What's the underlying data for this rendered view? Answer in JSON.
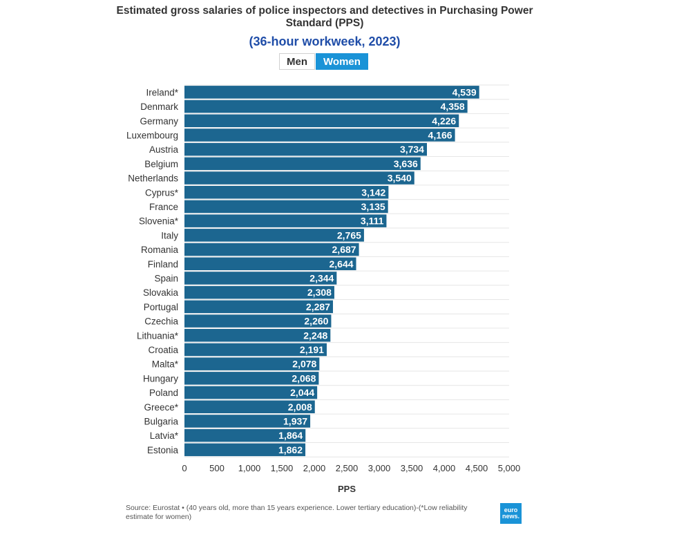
{
  "title": "Estimated gross salaries of police inspectors and detectives in Purchasing Power Standard (PPS)",
  "subtitle": "(36-hour workweek, 2023)",
  "toggle": {
    "men_label": "Men",
    "women_label": "Women",
    "selected": "Women"
  },
  "source_text": "Source: Eurostat • (40 years old, more than 15 years experience. Lower tertiary education)-(*Low reliability estimate for women)",
  "logo": {
    "line1": "euro",
    "line2": "news."
  },
  "colors": {
    "bar": "#1c6690",
    "grid": "#e6e6e6",
    "toggle_active": "#1a93d7",
    "subtitle": "#1f4da8"
  },
  "chart_data": {
    "type": "bar",
    "orientation": "horizontal",
    "title": "Estimated gross salaries of police inspectors and detectives in Purchasing Power Standard (PPS)",
    "xlabel": "PPS",
    "ylabel": "",
    "xlim": [
      0,
      5000
    ],
    "ticks": [
      0,
      500,
      1000,
      1500,
      2000,
      2500,
      3000,
      3500,
      4000,
      4500,
      5000
    ],
    "tick_labels": [
      "0",
      "500",
      "1,000",
      "1,500",
      "2,000",
      "2,500",
      "3,000",
      "3,500",
      "4,000",
      "4,500",
      "5,000"
    ],
    "categories": [
      "Ireland*",
      "Denmark",
      "Germany",
      "Luxembourg",
      "Austria",
      "Belgium",
      "Netherlands",
      "Cyprus*",
      "France",
      "Slovenia*",
      "Italy",
      "Romania",
      "Finland",
      "Spain",
      "Slovakia",
      "Portugal",
      "Czechia",
      "Lithuania*",
      "Croatia",
      "Malta*",
      "Hungary",
      "Poland",
      "Greece*",
      "Bulgaria",
      "Latvia*",
      "Estonia"
    ],
    "values": [
      4539,
      4358,
      4226,
      4166,
      3734,
      3636,
      3540,
      3142,
      3135,
      3111,
      2765,
      2687,
      2644,
      2344,
      2308,
      2287,
      2260,
      2248,
      2191,
      2078,
      2068,
      2044,
      2008,
      1937,
      1864,
      1862
    ],
    "value_labels": [
      "4,539",
      "4,358",
      "4,226",
      "4,166",
      "3,734",
      "3,636",
      "3,540",
      "3,142",
      "3,135",
      "3,111",
      "2,765",
      "2,687",
      "2,644",
      "2,344",
      "2,308",
      "2,287",
      "2,260",
      "2,248",
      "2,191",
      "2,078",
      "2,068",
      "2,044",
      "2,008",
      "1,937",
      "1,864",
      "1,862"
    ],
    "grid": true,
    "legend": "none"
  }
}
